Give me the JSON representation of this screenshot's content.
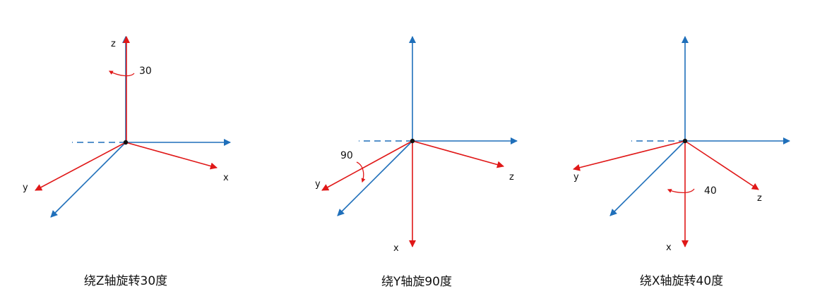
{
  "colors": {
    "reference_axis": "#1f6fba",
    "rotated_axis": "#e01818",
    "origin": "#111111"
  },
  "panels": [
    {
      "caption": "绕Z轴旋转30度",
      "angle": "30",
      "rotation_arrow": "curved-arrow-left-icon",
      "labels": {
        "x": "x",
        "y": "y",
        "z": "z"
      }
    },
    {
      "caption": "绕Y轴旋90度",
      "angle": "90",
      "rotation_arrow": "curved-arrow-down-icon",
      "labels": {
        "x": "x",
        "y": "y",
        "z": "z"
      }
    },
    {
      "caption": "绕X轴旋转40度",
      "angle": "40",
      "rotation_arrow": "curved-arrow-left-icon",
      "labels": {
        "x": "x",
        "y": "y",
        "z": "z"
      }
    }
  ]
}
